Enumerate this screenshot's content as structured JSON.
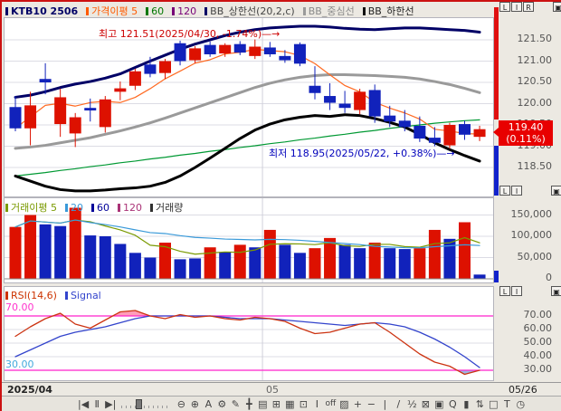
{
  "header": {
    "legend": [
      {
        "label": "KTB10 2506",
        "color": "#000066",
        "marker": "#000066",
        "bold": true
      },
      {
        "label": "가격이평 5",
        "color": "#ff5a00",
        "marker": "#ff5a00"
      },
      {
        "label": "60",
        "color": "#007700",
        "marker": "#007700"
      },
      {
        "label": "120",
        "color": "#770077",
        "marker": "#770077"
      },
      {
        "label": "BB_상한선(20,2,c)",
        "color": "#444444",
        "marker": "#000066"
      },
      {
        "label": "BB_중심선",
        "color": "#8a8a8a",
        "marker": "#9a9a9a"
      },
      {
        "label": "BB_하한선",
        "color": "#222222",
        "marker": "#111111"
      }
    ]
  },
  "volume_legend": [
    {
      "label": "거래이평 5",
      "color": "#7a9a01",
      "marker": "#7a9a01"
    },
    {
      "label": "20",
      "color": "#3a9ad9",
      "marker": "#3a9ad9"
    },
    {
      "label": "60",
      "color": "#000099",
      "marker": "#000099"
    },
    {
      "label": "120",
      "color": "#aa3377",
      "marker": "#aa3377"
    },
    {
      "label": "거래량",
      "color": "#303030",
      "marker": "#303030"
    }
  ],
  "rsi_legend": [
    {
      "label": "RSI(14,6)",
      "color": "#cc3300",
      "marker": "#cc3300"
    },
    {
      "label": "Signal",
      "color": "#3344cc",
      "marker": "#3344cc"
    }
  ],
  "panel_controls": {
    "row1": [
      "L",
      "I",
      "R"
    ],
    "row2": [
      "L",
      "I"
    ],
    "window_buttons": [
      "▣",
      "×"
    ]
  },
  "x_axis": {
    "left": "2025/04",
    "mid": "05",
    "right": "05/26"
  },
  "toolbar": [
    {
      "name": "go-first",
      "glyph": "|◀"
    },
    {
      "name": "pause",
      "glyph": "Ⅱ"
    },
    {
      "name": "go-last",
      "glyph": "▶|"
    },
    {
      "name": "zoom-out",
      "glyph": "⊖"
    },
    {
      "name": "zoom-in",
      "glyph": "⊕"
    },
    {
      "name": "text-tool",
      "glyph": "A"
    },
    {
      "name": "settings",
      "glyph": "⚙"
    },
    {
      "name": "draw-tool",
      "glyph": "✎"
    },
    {
      "name": "crosshair",
      "glyph": "╋"
    },
    {
      "name": "chart-style",
      "glyph": "▤"
    },
    {
      "name": "grid",
      "glyph": "⊞"
    },
    {
      "name": "data-table",
      "glyph": "▦"
    },
    {
      "name": "indicator",
      "glyph": "⊡"
    },
    {
      "name": "interval",
      "glyph": "Ⅰ"
    },
    {
      "name": "off",
      "glyph": "off"
    },
    {
      "name": "pattern",
      "glyph": "▨"
    },
    {
      "name": "add",
      "glyph": "+"
    },
    {
      "name": "remove",
      "glyph": "−"
    },
    {
      "name": "vertical-line",
      "glyph": "|"
    },
    {
      "name": "trend-line",
      "glyph": "/"
    },
    {
      "name": "fibonacci",
      "glyph": "½"
    },
    {
      "name": "eraser",
      "glyph": "⊠"
    },
    {
      "name": "save",
      "glyph": "▣"
    },
    {
      "name": "search",
      "glyph": "Q"
    },
    {
      "name": "color-bar",
      "glyph": "▮"
    },
    {
      "name": "sort",
      "glyph": "⇅"
    },
    {
      "name": "fullscreen",
      "glyph": "□"
    },
    {
      "name": "text-insert",
      "glyph": "T"
    },
    {
      "name": "clock",
      "glyph": "◷"
    }
  ],
  "chart_data": {
    "type": "candlestick",
    "symbol": "KTB10 2506",
    "price_panel": {
      "ylim": [
        117.9,
        122.1
      ],
      "y_ticks": [
        121.5,
        121.0,
        120.5,
        120.0,
        119.5,
        119.0,
        118.5
      ],
      "up_color": "#dd1100",
      "down_color": "#1122bb",
      "annotation_high": "최고 121.51(2025/04/30, -1.74%)—→",
      "annotation_low": "최저 118.95(2025/05/22, +0.38%)—→",
      "current_price": "119.40",
      "current_change": "(0.11%)",
      "candles": [
        {
          "d": "04/08",
          "o": 119.92,
          "h": 120.18,
          "l": 119.35,
          "c": 119.42
        },
        {
          "d": "04/09",
          "o": 119.42,
          "h": 120.28,
          "l": 119.02,
          "c": 119.96
        },
        {
          "d": "04/10",
          "o": 120.58,
          "h": 120.95,
          "l": 120.22,
          "c": 120.5
        },
        {
          "d": "04/11",
          "o": 119.52,
          "h": 120.35,
          "l": 119.22,
          "c": 120.15
        },
        {
          "d": "04/14",
          "o": 119.3,
          "h": 119.78,
          "l": 118.98,
          "c": 119.68
        },
        {
          "d": "04/15",
          "o": 119.9,
          "h": 120.12,
          "l": 119.58,
          "c": 119.84
        },
        {
          "d": "04/16",
          "o": 119.45,
          "h": 120.18,
          "l": 119.32,
          "c": 120.1
        },
        {
          "d": "04/17",
          "o": 120.28,
          "h": 120.52,
          "l": 120.08,
          "c": 120.36
        },
        {
          "d": "04/18",
          "o": 120.42,
          "h": 120.82,
          "l": 120.32,
          "c": 120.76
        },
        {
          "d": "04/21",
          "o": 120.92,
          "h": 121.1,
          "l": 120.62,
          "c": 120.7
        },
        {
          "d": "04/22",
          "o": 120.72,
          "h": 121.05,
          "l": 120.58,
          "c": 121.0
        },
        {
          "d": "04/23",
          "o": 121.42,
          "h": 121.48,
          "l": 120.9,
          "c": 121.0
        },
        {
          "d": "04/24",
          "o": 121.02,
          "h": 121.35,
          "l": 120.95,
          "c": 121.3
        },
        {
          "d": "04/25",
          "o": 121.38,
          "h": 121.46,
          "l": 121.1,
          "c": 121.16
        },
        {
          "d": "04/28",
          "o": 121.18,
          "h": 121.42,
          "l": 121.1,
          "c": 121.38
        },
        {
          "d": "04/29",
          "o": 121.4,
          "h": 121.47,
          "l": 121.14,
          "c": 121.2
        },
        {
          "d": "04/30",
          "o": 121.12,
          "h": 121.51,
          "l": 121.05,
          "c": 121.34
        },
        {
          "d": "05/02",
          "o": 121.32,
          "h": 121.45,
          "l": 121.1,
          "c": 121.16
        },
        {
          "d": "05/07",
          "o": 121.12,
          "h": 121.26,
          "l": 120.96,
          "c": 121.02
        },
        {
          "d": "05/08",
          "o": 121.4,
          "h": 121.44,
          "l": 120.88,
          "c": 120.94
        },
        {
          "d": "05/09",
          "o": 120.42,
          "h": 120.88,
          "l": 120.1,
          "c": 120.25
        },
        {
          "d": "05/12",
          "o": 120.18,
          "h": 120.48,
          "l": 119.85,
          "c": 120.02
        },
        {
          "d": "05/13",
          "o": 120.0,
          "h": 120.3,
          "l": 119.78,
          "c": 119.9
        },
        {
          "d": "05/14",
          "o": 119.85,
          "h": 120.35,
          "l": 119.75,
          "c": 120.28
        },
        {
          "d": "05/15",
          "o": 120.32,
          "h": 120.45,
          "l": 119.55,
          "c": 119.7
        },
        {
          "d": "05/16",
          "o": 119.72,
          "h": 119.95,
          "l": 119.45,
          "c": 119.58
        },
        {
          "d": "05/19",
          "o": 119.6,
          "h": 119.85,
          "l": 119.35,
          "c": 119.45
        },
        {
          "d": "05/20",
          "o": 119.48,
          "h": 119.7,
          "l": 119.1,
          "c": 119.18
        },
        {
          "d": "05/21",
          "o": 119.2,
          "h": 119.45,
          "l": 119.0,
          "c": 119.08
        },
        {
          "d": "05/22",
          "o": 119.02,
          "h": 119.55,
          "l": 118.95,
          "c": 119.5
        },
        {
          "d": "05/23",
          "o": 119.52,
          "h": 119.6,
          "l": 119.15,
          "c": 119.27
        },
        {
          "d": "05/26",
          "o": 119.22,
          "h": 119.48,
          "l": 119.12,
          "c": 119.4
        }
      ],
      "bb_upper": [
        120.15,
        120.2,
        120.28,
        120.38,
        120.46,
        120.52,
        120.6,
        120.7,
        120.85,
        121.0,
        121.14,
        121.28,
        121.4,
        121.5,
        121.6,
        121.68,
        121.74,
        121.78,
        121.8,
        121.82,
        121.82,
        121.8,
        121.77,
        121.75,
        121.74,
        121.76,
        121.78,
        121.78,
        121.76,
        121.74,
        121.72,
        121.68
      ],
      "bb_center": [
        118.95,
        118.98,
        119.02,
        119.08,
        119.14,
        119.2,
        119.28,
        119.36,
        119.45,
        119.55,
        119.66,
        119.78,
        119.9,
        120.02,
        120.14,
        120.26,
        120.38,
        120.48,
        120.56,
        120.62,
        120.66,
        120.68,
        120.68,
        120.67,
        120.66,
        120.64,
        120.62,
        120.58,
        120.52,
        120.45,
        120.36,
        120.26
      ],
      "bb_lower": [
        118.3,
        118.18,
        118.06,
        117.98,
        117.95,
        117.95,
        117.97,
        118.0,
        118.02,
        118.06,
        118.15,
        118.3,
        118.5,
        118.72,
        118.95,
        119.18,
        119.38,
        119.52,
        119.62,
        119.68,
        119.72,
        119.7,
        119.74,
        119.72,
        119.65,
        119.56,
        119.45,
        119.28,
        119.08,
        118.92,
        118.78,
        118.65
      ],
      "ma60": [
        118.3,
        118.34,
        118.38,
        118.43,
        118.47,
        118.52,
        118.56,
        118.61,
        118.65,
        118.7,
        118.74,
        118.79,
        118.83,
        118.88,
        118.92,
        118.97,
        119.01,
        119.06,
        119.1,
        119.15,
        119.19,
        119.24,
        119.28,
        119.33,
        119.37,
        119.42,
        119.46,
        119.5,
        119.54,
        119.57,
        119.6,
        119.62
      ]
    },
    "volume_panel": {
      "ylim": [
        0,
        175000
      ],
      "y_ticks": [
        150000,
        100000,
        50000,
        0
      ],
      "volumes": [
        122000,
        150000,
        128000,
        124000,
        167000,
        102000,
        100000,
        82000,
        61000,
        50000,
        85000,
        46000,
        48000,
        74000,
        63000,
        80000,
        74000,
        115000,
        80000,
        61000,
        72000,
        96000,
        80000,
        72000,
        85000,
        72000,
        70000,
        72000,
        115000,
        94000,
        133000,
        10000
      ],
      "up": [
        true,
        true,
        false,
        false,
        true,
        false,
        false,
        false,
        false,
        false,
        true,
        false,
        false,
        true,
        false,
        true,
        false,
        true,
        false,
        false,
        true,
        true,
        false,
        false,
        true,
        false,
        false,
        true,
        true,
        false,
        true,
        false
      ]
    },
    "rsi_panel": {
      "ylim": [
        22,
        80
      ],
      "y_ticks": [
        70.0,
        60.0,
        50.0,
        40.0,
        30.0
      ],
      "overbought": 70,
      "oversold": 30,
      "rsi": [
        55,
        62,
        68,
        72,
        64,
        61,
        67,
        73,
        74,
        70,
        68,
        71,
        69,
        70,
        68,
        67,
        69,
        68,
        66,
        61,
        57,
        58,
        61,
        64,
        65,
        58,
        50,
        42,
        36,
        33,
        27,
        30
      ],
      "signal": [
        40,
        45,
        50,
        55,
        58,
        60,
        62,
        65,
        68,
        70,
        70,
        70,
        70,
        70,
        69,
        68,
        68,
        68,
        67,
        66,
        65,
        64,
        63,
        64,
        65,
        64,
        62,
        58,
        53,
        47,
        40,
        32
      ]
    }
  }
}
